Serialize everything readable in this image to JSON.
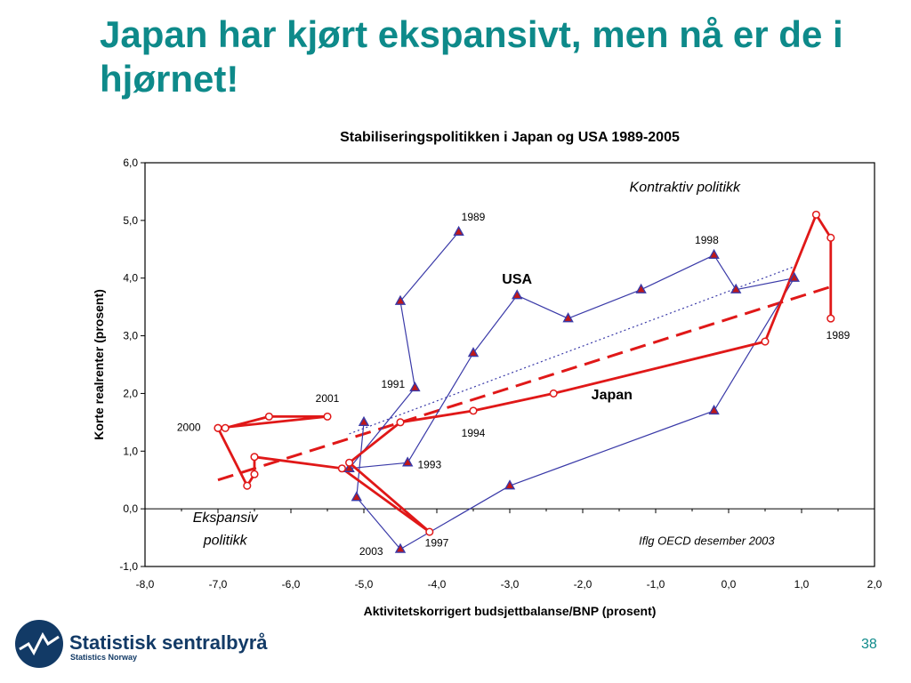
{
  "slide": {
    "title": "Japan har kjørt ekspansivt, men nå er de i hjørnet!",
    "page_number": "38",
    "logo_text": "Statistisk sentralbyrå",
    "logo_subtext": "Statistics Norway"
  },
  "colors": {
    "title": "#0e8a8a",
    "usa": "#3a3aa8",
    "japan": "#e01818",
    "marker_usa": "#c01818",
    "logo": "#123a66"
  },
  "chart_data": {
    "type": "line",
    "title": "Stabiliseringspolitikken i Japan og USA 1989-2005",
    "xlabel": "Aktivitetskorrigert budsjettbalanse/BNP (prosent)",
    "ylabel": "Korte realrenter (prosent)",
    "xlim": [
      -8,
      2
    ],
    "ylim": [
      -1,
      6
    ],
    "xticks": [
      "-8,0",
      "-7,0",
      "-6,0",
      "-5,0",
      "-4,0",
      "-3,0",
      "-2,0",
      "-1,0",
      "0,0",
      "1,0",
      "2,0"
    ],
    "yticks": [
      "-1,0",
      "0,0",
      "1,0",
      "2,0",
      "3,0",
      "4,0",
      "5,0",
      "6,0"
    ],
    "grid": false,
    "series": [
      {
        "name": "USA",
        "marker": "triangle",
        "points": [
          [
            -3.7,
            4.8
          ],
          [
            -4.5,
            3.6
          ],
          [
            -4.3,
            2.1
          ],
          [
            -5.2,
            0.7
          ],
          [
            -4.4,
            0.8
          ],
          [
            -3.5,
            2.7
          ],
          [
            -2.9,
            3.7
          ],
          [
            -2.2,
            3.3
          ],
          [
            -1.2,
            3.8
          ],
          [
            -0.2,
            4.4
          ],
          [
            0.1,
            3.8
          ],
          [
            0.9,
            4.0
          ],
          [
            -0.2,
            1.7
          ],
          [
            -3.0,
            0.4
          ],
          [
            -4.5,
            -0.7
          ],
          [
            -5.1,
            0.2
          ],
          [
            -5.0,
            1.5
          ]
        ]
      },
      {
        "name": "Japan",
        "marker": "circle",
        "points": [
          [
            1.4,
            3.3
          ],
          [
            1.4,
            4.7
          ],
          [
            1.2,
            5.1
          ],
          [
            0.5,
            2.9
          ],
          [
            -2.4,
            2.0
          ],
          [
            -3.5,
            1.7
          ],
          [
            -4.5,
            1.5
          ],
          [
            -5.2,
            0.8
          ],
          [
            -4.1,
            -0.4
          ],
          [
            -5.3,
            0.7
          ],
          [
            -6.5,
            0.9
          ],
          [
            -6.5,
            0.6
          ],
          [
            -6.6,
            0.4
          ],
          [
            -7.0,
            1.4
          ],
          [
            -6.9,
            1.4
          ],
          [
            -6.3,
            1.6
          ],
          [
            -5.5,
            1.6
          ],
          [
            -7.0,
            1.4
          ]
        ]
      }
    ],
    "trendlines": [
      {
        "series": "USA",
        "style": "dotted",
        "from": [
          -5.2,
          1.3
        ],
        "to": [
          0.9,
          4.2
        ]
      },
      {
        "series": "Japan",
        "style": "dashed",
        "from": [
          -7.0,
          0.5
        ],
        "to": [
          1.4,
          3.85
        ]
      }
    ],
    "annotations": [
      {
        "text": "1989",
        "x": -3.5,
        "y": 5.0
      },
      {
        "text": "1998",
        "x": -0.3,
        "y": 4.6
      },
      {
        "text": "USA",
        "x": -2.9,
        "y": 3.9,
        "bold": true,
        "size": 16
      },
      {
        "text": "1989",
        "x": 1.5,
        "y": 2.95
      },
      {
        "text": "1991",
        "x": -4.6,
        "y": 2.1
      },
      {
        "text": "2001",
        "x": -5.5,
        "y": 1.85
      },
      {
        "text": "Japan",
        "x": -1.6,
        "y": 1.9,
        "bold": true,
        "size": 16
      },
      {
        "text": "2000",
        "x": -7.4,
        "y": 1.35
      },
      {
        "text": "1994",
        "x": -3.5,
        "y": 1.25
      },
      {
        "text": "1993",
        "x": -4.1,
        "y": 0.7
      },
      {
        "text": "1997",
        "x": -4.0,
        "y": -0.65
      },
      {
        "text": "2003",
        "x": -4.9,
        "y": -0.8
      },
      {
        "text": "Kontraktiv politikk",
        "x": -0.6,
        "y": 5.5,
        "italic": true,
        "size": 16
      },
      {
        "text": "Ekspansiv",
        "x": -6.9,
        "y": -0.23,
        "italic": true,
        "size": 16
      },
      {
        "text": "politikk",
        "x": -6.9,
        "y": -0.62,
        "italic": true,
        "size": 16
      },
      {
        "text": "Iflg OECD desember 2003",
        "x": -0.3,
        "y": -0.62,
        "italic": true,
        "size": 13
      }
    ]
  }
}
